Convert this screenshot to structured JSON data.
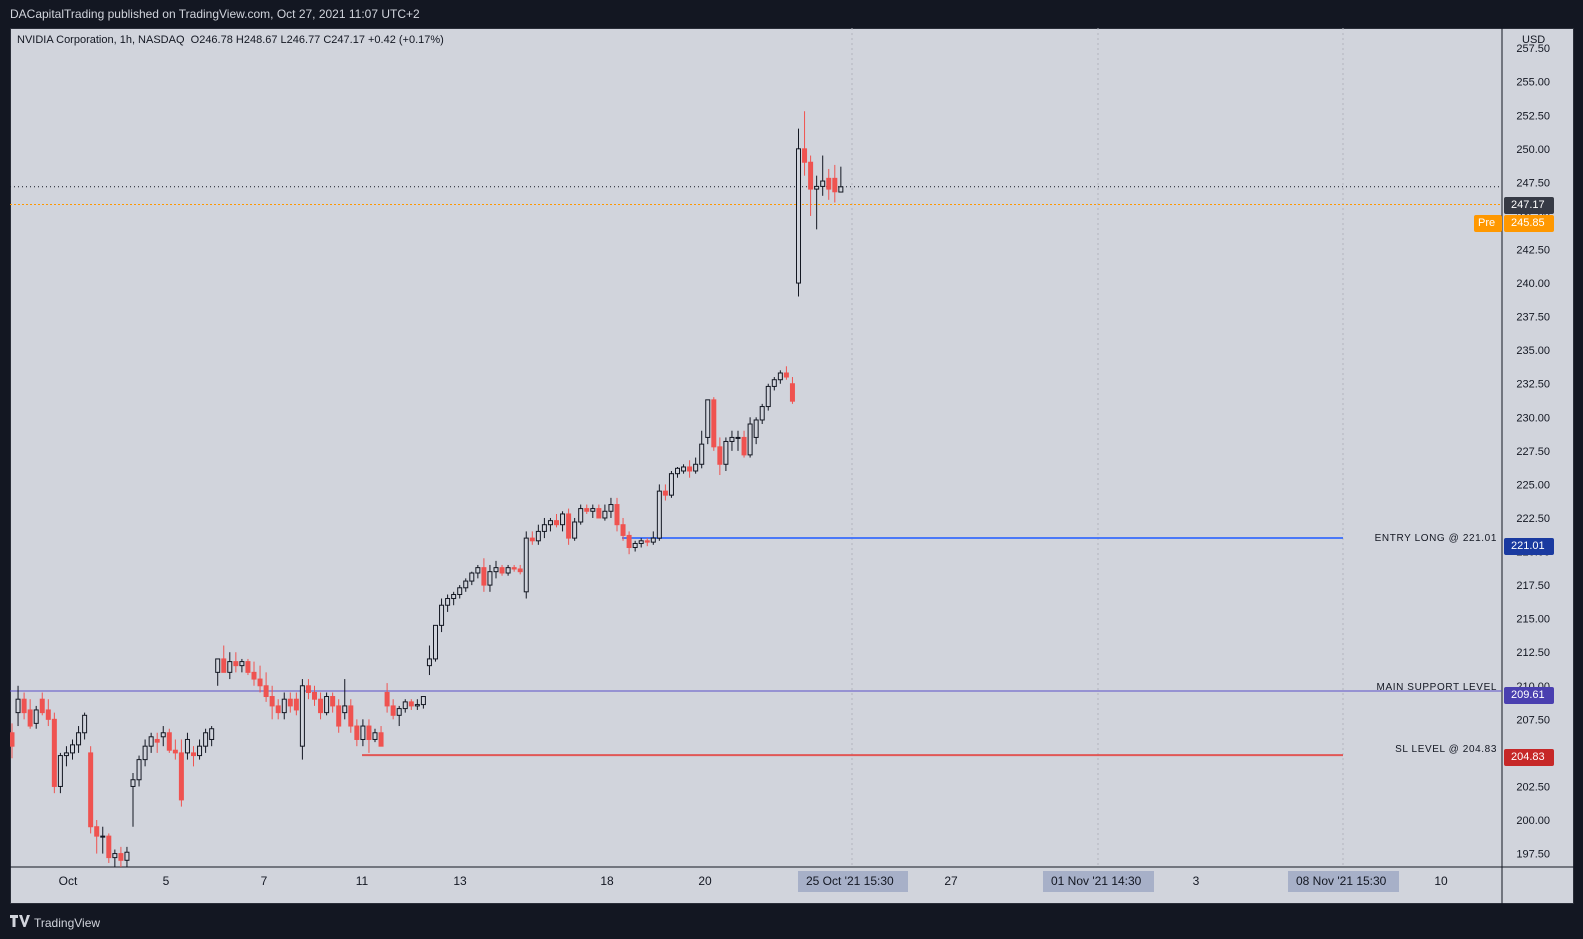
{
  "header": {
    "published": "DACapitalTrading published on TradingView.com, Oct 27, 2021 11:07 UTC+2"
  },
  "legend": {
    "symbol": "NVIDIA Corporation, 1h, NASDAQ",
    "ohlc": "O246.78  H248.67  L246.77  C247.17  +0.42 (+0.17%)"
  },
  "currency": "USD",
  "footer": {
    "brand": "TradingView"
  },
  "price_labels": {
    "last": "247.17",
    "pre_tag": "Pre",
    "pre": "245.85",
    "entry": "221.01",
    "support": "209.61",
    "sl": "204.83"
  },
  "line_labels": {
    "entry": "ENTRY LONG @ 221.01",
    "support": "MAIN SUPPORT LEVEL",
    "sl": "SL LEVEL @ 204.83"
  },
  "axis_highlights": {
    "a": "25 Oct '21   15:30",
    "b": "01 Nov '21   14:30",
    "c": "08 Nov '21   15:30"
  },
  "colors": {
    "up": "#131722",
    "down": "#ef5350",
    "entry_line": "#2962ff",
    "support_line": "#5b4fc8",
    "sl_line": "#e53935",
    "pre": "#ff9800",
    "last": "#363a45"
  },
  "chart_data": {
    "type": "candlestick",
    "title": "NVIDIA Corporation, 1h, NASDAQ",
    "ylim": [
      196.5,
      259.0
    ],
    "y_ticks": [
      197.5,
      200.0,
      202.5,
      205.0,
      207.5,
      210.0,
      212.5,
      215.0,
      217.5,
      220.0,
      222.5,
      225.0,
      227.5,
      230.0,
      232.5,
      235.0,
      237.5,
      240.0,
      242.5,
      245.0,
      247.5,
      250.0,
      252.5,
      255.0,
      257.5
    ],
    "x_labels": [
      "Oct",
      "5",
      "7",
      "11",
      "13",
      "18",
      "20",
      "27",
      "3",
      "10"
    ],
    "grid": true,
    "levels": [
      {
        "name": "ENTRY LONG @ 221.01",
        "value": 221.01
      },
      {
        "name": "MAIN SUPPORT LEVEL",
        "value": 209.61
      },
      {
        "name": "SL LEVEL @ 204.83",
        "value": 204.83
      }
    ],
    "last_price": 247.17,
    "premarket_price": 245.85,
    "candles": [
      [
        206.5,
        207.2,
        204.6,
        205.5
      ],
      [
        208.0,
        210.0,
        207.0,
        209.0
      ],
      [
        209.0,
        209.5,
        207.5,
        208.0
      ],
      [
        208.2,
        209.0,
        206.8,
        207.0
      ],
      [
        207.2,
        208.5,
        206.8,
        208.2
      ],
      [
        209.0,
        209.5,
        207.8,
        208.0
      ],
      [
        208.2,
        209.0,
        207.0,
        207.5
      ],
      [
        207.5,
        208.0,
        202.0,
        202.5
      ],
      [
        202.5,
        205.0,
        202.0,
        204.8
      ],
      [
        204.8,
        205.5,
        204.0,
        205.0
      ],
      [
        205.0,
        206.0,
        204.5,
        205.6
      ],
      [
        205.6,
        207.0,
        205.0,
        206.5
      ],
      [
        206.5,
        208.0,
        206.0,
        207.8
      ],
      [
        205.0,
        205.5,
        199.0,
        199.5
      ],
      [
        199.5,
        200.0,
        197.5,
        198.8
      ],
      [
        198.8,
        199.5,
        197.5,
        198.8
      ],
      [
        198.8,
        199.0,
        196.8,
        197.2
      ],
      [
        197.2,
        197.8,
        196.5,
        197.5
      ],
      [
        197.5,
        198.0,
        196.5,
        197.0
      ],
      [
        197.0,
        198.0,
        196.5,
        197.6
      ],
      [
        202.5,
        203.5,
        199.5,
        203.0
      ],
      [
        203.0,
        204.8,
        202.5,
        204.5
      ],
      [
        204.5,
        206.0,
        204.0,
        205.5
      ],
      [
        205.5,
        206.5,
        205.0,
        206.2
      ],
      [
        206.0,
        206.5,
        205.0,
        205.8
      ],
      [
        206.2,
        207.0,
        205.5,
        206.5
      ],
      [
        206.5,
        206.8,
        205.0,
        205.2
      ],
      [
        205.2,
        206.0,
        204.5,
        205.0
      ],
      [
        205.0,
        206.0,
        201.0,
        201.5
      ],
      [
        205.0,
        206.5,
        204.5,
        206.0
      ],
      [
        205.0,
        205.5,
        204.0,
        204.8
      ],
      [
        204.8,
        206.0,
        204.5,
        205.5
      ],
      [
        205.5,
        206.8,
        205.0,
        206.5
      ],
      [
        206.0,
        207.0,
        205.5,
        206.8
      ],
      [
        211.0,
        212.0,
        210.0,
        212.0
      ],
      [
        212.0,
        213.0,
        211.5,
        211.0
      ],
      [
        211.0,
        212.5,
        210.5,
        211.8
      ],
      [
        211.8,
        212.5,
        211.0,
        211.5
      ],
      [
        211.5,
        212.0,
        211.0,
        211.8
      ],
      [
        211.8,
        212.0,
        210.8,
        211.0
      ],
      [
        211.0,
        211.8,
        210.0,
        210.5
      ],
      [
        210.5,
        211.5,
        209.5,
        210.0
      ],
      [
        210.0,
        211.0,
        208.8,
        209.2
      ],
      [
        209.2,
        210.0,
        207.5,
        208.5
      ],
      [
        208.5,
        209.0,
        207.5,
        208.0
      ],
      [
        208.0,
        209.5,
        207.5,
        209.0
      ],
      [
        209.0,
        209.5,
        208.0,
        208.5
      ],
      [
        209.0,
        209.5,
        207.8,
        208.2
      ],
      [
        205.5,
        210.5,
        204.5,
        210.0
      ],
      [
        210.0,
        210.5,
        209.0,
        209.5
      ],
      [
        209.5,
        210.0,
        208.5,
        209.0
      ],
      [
        209.0,
        209.5,
        207.5,
        208.0
      ],
      [
        208.0,
        209.5,
        207.8,
        209.2
      ],
      [
        209.2,
        209.5,
        208.0,
        208.5
      ],
      [
        208.5,
        209.0,
        206.5,
        207.0
      ],
      [
        208.0,
        210.5,
        207.5,
        208.5
      ],
      [
        208.5,
        209.0,
        206.5,
        207.0
      ],
      [
        207.0,
        207.5,
        205.5,
        206.0
      ],
      [
        206.0,
        207.5,
        205.5,
        207.0
      ],
      [
        207.0,
        207.5,
        205.0,
        206.0
      ],
      [
        206.0,
        206.8,
        205.8,
        206.5
      ],
      [
        206.5,
        207.0,
        206.0,
        205.5
      ],
      [
        209.5,
        210.2,
        208.0,
        208.5
      ],
      [
        208.5,
        209.0,
        207.5,
        207.8
      ],
      [
        207.8,
        208.5,
        207.0,
        208.3
      ],
      [
        208.3,
        209.0,
        208.0,
        208.8
      ],
      [
        208.8,
        209.0,
        208.2,
        208.5
      ],
      [
        208.5,
        209.0,
        208.2,
        208.6
      ],
      [
        208.6,
        209.2,
        208.3,
        209.2
      ],
      [
        211.5,
        213.0,
        210.8,
        212.0
      ],
      [
        212.0,
        214.5,
        211.8,
        214.5
      ],
      [
        214.5,
        216.5,
        214.0,
        216.0
      ],
      [
        216.0,
        216.8,
        215.5,
        216.5
      ],
      [
        216.5,
        217.0,
        216.0,
        216.8
      ],
      [
        216.8,
        217.5,
        216.5,
        217.3
      ],
      [
        217.3,
        218.0,
        217.0,
        217.8
      ],
      [
        217.8,
        218.5,
        217.5,
        218.4
      ],
      [
        218.4,
        219.0,
        218.0,
        218.8
      ],
      [
        218.8,
        219.5,
        217.0,
        217.5
      ],
      [
        217.5,
        219.0,
        217.0,
        218.5
      ],
      [
        218.5,
        219.3,
        218.0,
        218.8
      ],
      [
        218.8,
        219.0,
        218.2,
        218.4
      ],
      [
        218.4,
        219.0,
        218.2,
        218.8
      ],
      [
        218.8,
        219.0,
        218.5,
        218.7
      ],
      [
        218.7,
        219.0,
        218.3,
        218.5
      ],
      [
        217.0,
        221.5,
        216.5,
        221.0
      ],
      [
        221.0,
        221.5,
        220.5,
        220.8
      ],
      [
        220.8,
        222.0,
        220.5,
        221.5
      ],
      [
        221.5,
        222.5,
        221.0,
        222.0
      ],
      [
        222.0,
        222.5,
        221.5,
        222.3
      ],
      [
        222.3,
        222.8,
        221.8,
        222.0
      ],
      [
        222.0,
        223.0,
        221.5,
        222.8
      ],
      [
        222.8,
        223.2,
        220.5,
        221.0
      ],
      [
        221.0,
        222.5,
        220.8,
        222.2
      ],
      [
        222.2,
        223.5,
        222.0,
        223.2
      ],
      [
        223.2,
        223.5,
        222.8,
        223.0
      ],
      [
        223.0,
        223.5,
        222.5,
        223.2
      ],
      [
        223.2,
        223.5,
        222.8,
        222.5
      ],
      [
        222.5,
        223.5,
        222.3,
        223.0
      ],
      [
        223.0,
        224.0,
        222.5,
        223.5
      ],
      [
        223.5,
        224.0,
        221.5,
        222.0
      ],
      [
        222.0,
        222.5,
        220.8,
        221.2
      ],
      [
        221.2,
        221.5,
        219.8,
        220.3
      ],
      [
        220.3,
        220.8,
        220.0,
        220.6
      ],
      [
        220.6,
        221.0,
        220.3,
        220.8
      ],
      [
        220.8,
        221.0,
        220.4,
        220.7
      ],
      [
        220.7,
        221.5,
        220.5,
        221.0
      ],
      [
        221.0,
        225.0,
        220.8,
        224.5
      ],
      [
        224.5,
        225.0,
        223.8,
        224.2
      ],
      [
        224.2,
        226.0,
        224.0,
        225.8
      ],
      [
        225.8,
        226.3,
        225.5,
        226.2
      ],
      [
        226.0,
        226.5,
        225.8,
        226.3
      ],
      [
        226.3,
        226.8,
        225.5,
        226.0
      ],
      [
        226.0,
        227.0,
        225.8,
        226.5
      ],
      [
        226.5,
        229.0,
        226.2,
        228.0
      ],
      [
        228.5,
        231.3,
        228.0,
        231.3
      ],
      [
        231.3,
        231.5,
        227.5,
        227.8
      ],
      [
        227.8,
        228.5,
        225.7,
        226.5
      ],
      [
        226.5,
        228.5,
        226.0,
        228.2
      ],
      [
        228.2,
        229.0,
        227.5,
        228.5
      ],
      [
        228.5,
        229.0,
        227.5,
        228.5
      ],
      [
        228.5,
        229.0,
        227.0,
        227.2
      ],
      [
        227.2,
        230.0,
        227.0,
        229.5
      ],
      [
        228.5,
        230.0,
        228.0,
        229.8
      ],
      [
        229.8,
        231.0,
        229.5,
        230.8
      ],
      [
        230.8,
        232.5,
        230.5,
        232.3
      ],
      [
        232.3,
        233.0,
        232.0,
        232.8
      ],
      [
        232.8,
        233.5,
        232.5,
        233.3
      ],
      [
        233.3,
        233.8,
        232.8,
        233.0
      ],
      [
        232.5,
        233.0,
        231.0,
        231.2
      ],
      [
        240.0,
        251.5,
        239.0,
        250.0
      ],
      [
        250.0,
        252.8,
        248.0,
        249.0
      ],
      [
        249.0,
        249.5,
        245.0,
        247.0
      ],
      [
        247.0,
        248.0,
        244.0,
        247.2
      ],
      [
        247.2,
        249.5,
        246.5,
        247.6
      ],
      [
        247.8,
        248.5,
        246.2,
        247.0
      ],
      [
        247.8,
        248.8,
        246.0,
        246.8
      ],
      [
        246.78,
        248.67,
        246.77,
        247.17
      ]
    ]
  }
}
